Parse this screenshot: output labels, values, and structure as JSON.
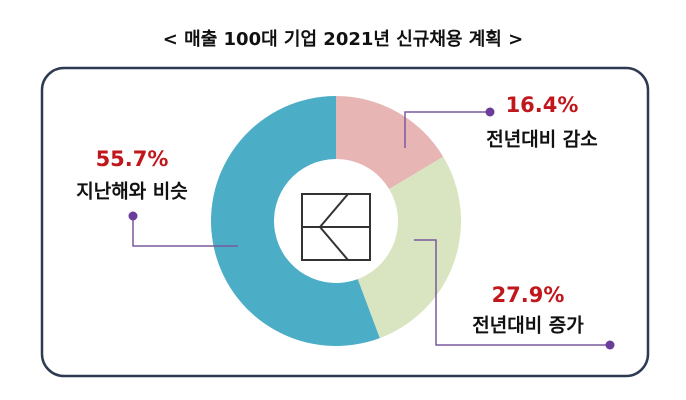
{
  "chart_data": {
    "type": "donut",
    "title": "< 매출 100대 기업 2021년 신규채용 계획 >",
    "categories": [
      "전년대비 감소",
      "전년대비 증가",
      "지난해와 비슷"
    ],
    "values": [
      16.4,
      27.9,
      55.7
    ],
    "value_labels": [
      "16.4%",
      "27.9%",
      "55.7%"
    ],
    "colors": [
      "#e8b5b5",
      "#d8e5c0",
      "#4badc6"
    ]
  }
}
